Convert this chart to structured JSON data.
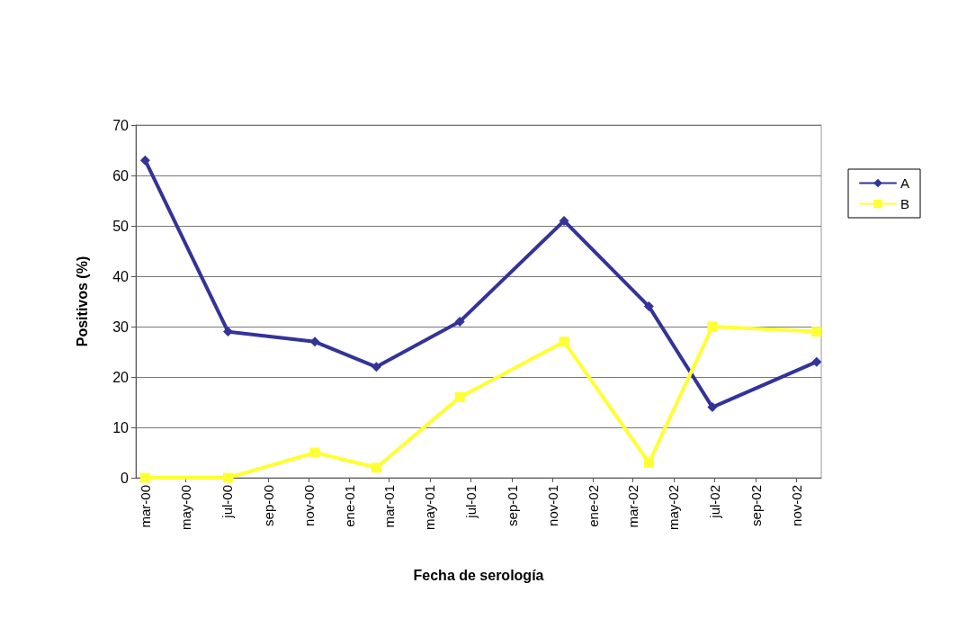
{
  "chart_data": {
    "type": "line",
    "xlabel": "Fecha de serología",
    "ylabel": "Positivos (%)",
    "x": [
      "2000-03-01",
      "2000-07-03",
      "2000-11-10",
      "2001-02-10",
      "2001-06-15",
      "2001-11-18",
      "2002-03-25",
      "2002-06-28",
      "2002-12-01"
    ],
    "series": [
      {
        "name": "A",
        "color": "#333399",
        "marker": "diamond",
        "values": [
          63,
          29,
          27,
          22,
          31,
          51,
          34,
          14,
          23
        ]
      },
      {
        "name": "B",
        "color": "#ffff33",
        "marker": "square",
        "values": [
          0,
          0,
          5,
          2,
          16,
          27,
          3,
          30,
          29
        ]
      }
    ],
    "xlim": [
      "2000-02-16",
      "2002-12-08"
    ],
    "xticks": [
      {
        "value": "2000-03-01",
        "label": "mar-00"
      },
      {
        "value": "2000-05-01",
        "label": "may-00"
      },
      {
        "value": "2000-07-01",
        "label": "jul-00"
      },
      {
        "value": "2000-09-01",
        "label": "sep-00"
      },
      {
        "value": "2000-11-01",
        "label": "nov-00"
      },
      {
        "value": "2001-01-01",
        "label": "ene-01"
      },
      {
        "value": "2001-03-01",
        "label": "mar-01"
      },
      {
        "value": "2001-05-01",
        "label": "may-01"
      },
      {
        "value": "2001-07-01",
        "label": "jul-01"
      },
      {
        "value": "2001-09-01",
        "label": "sep-01"
      },
      {
        "value": "2001-11-01",
        "label": "nov-01"
      },
      {
        "value": "2002-01-01",
        "label": "ene-02"
      },
      {
        "value": "2002-03-01",
        "label": "mar-02"
      },
      {
        "value": "2002-05-01",
        "label": "may-02"
      },
      {
        "value": "2002-07-01",
        "label": "jul-02"
      },
      {
        "value": "2002-09-01",
        "label": "sep-02"
      },
      {
        "value": "2002-11-01",
        "label": "nov-02"
      }
    ],
    "ylim": [
      0,
      70
    ],
    "yticks": [
      0,
      10,
      20,
      30,
      40,
      50,
      60,
      70
    ],
    "grid": "y",
    "legend": "right",
    "line_style": "solid"
  }
}
